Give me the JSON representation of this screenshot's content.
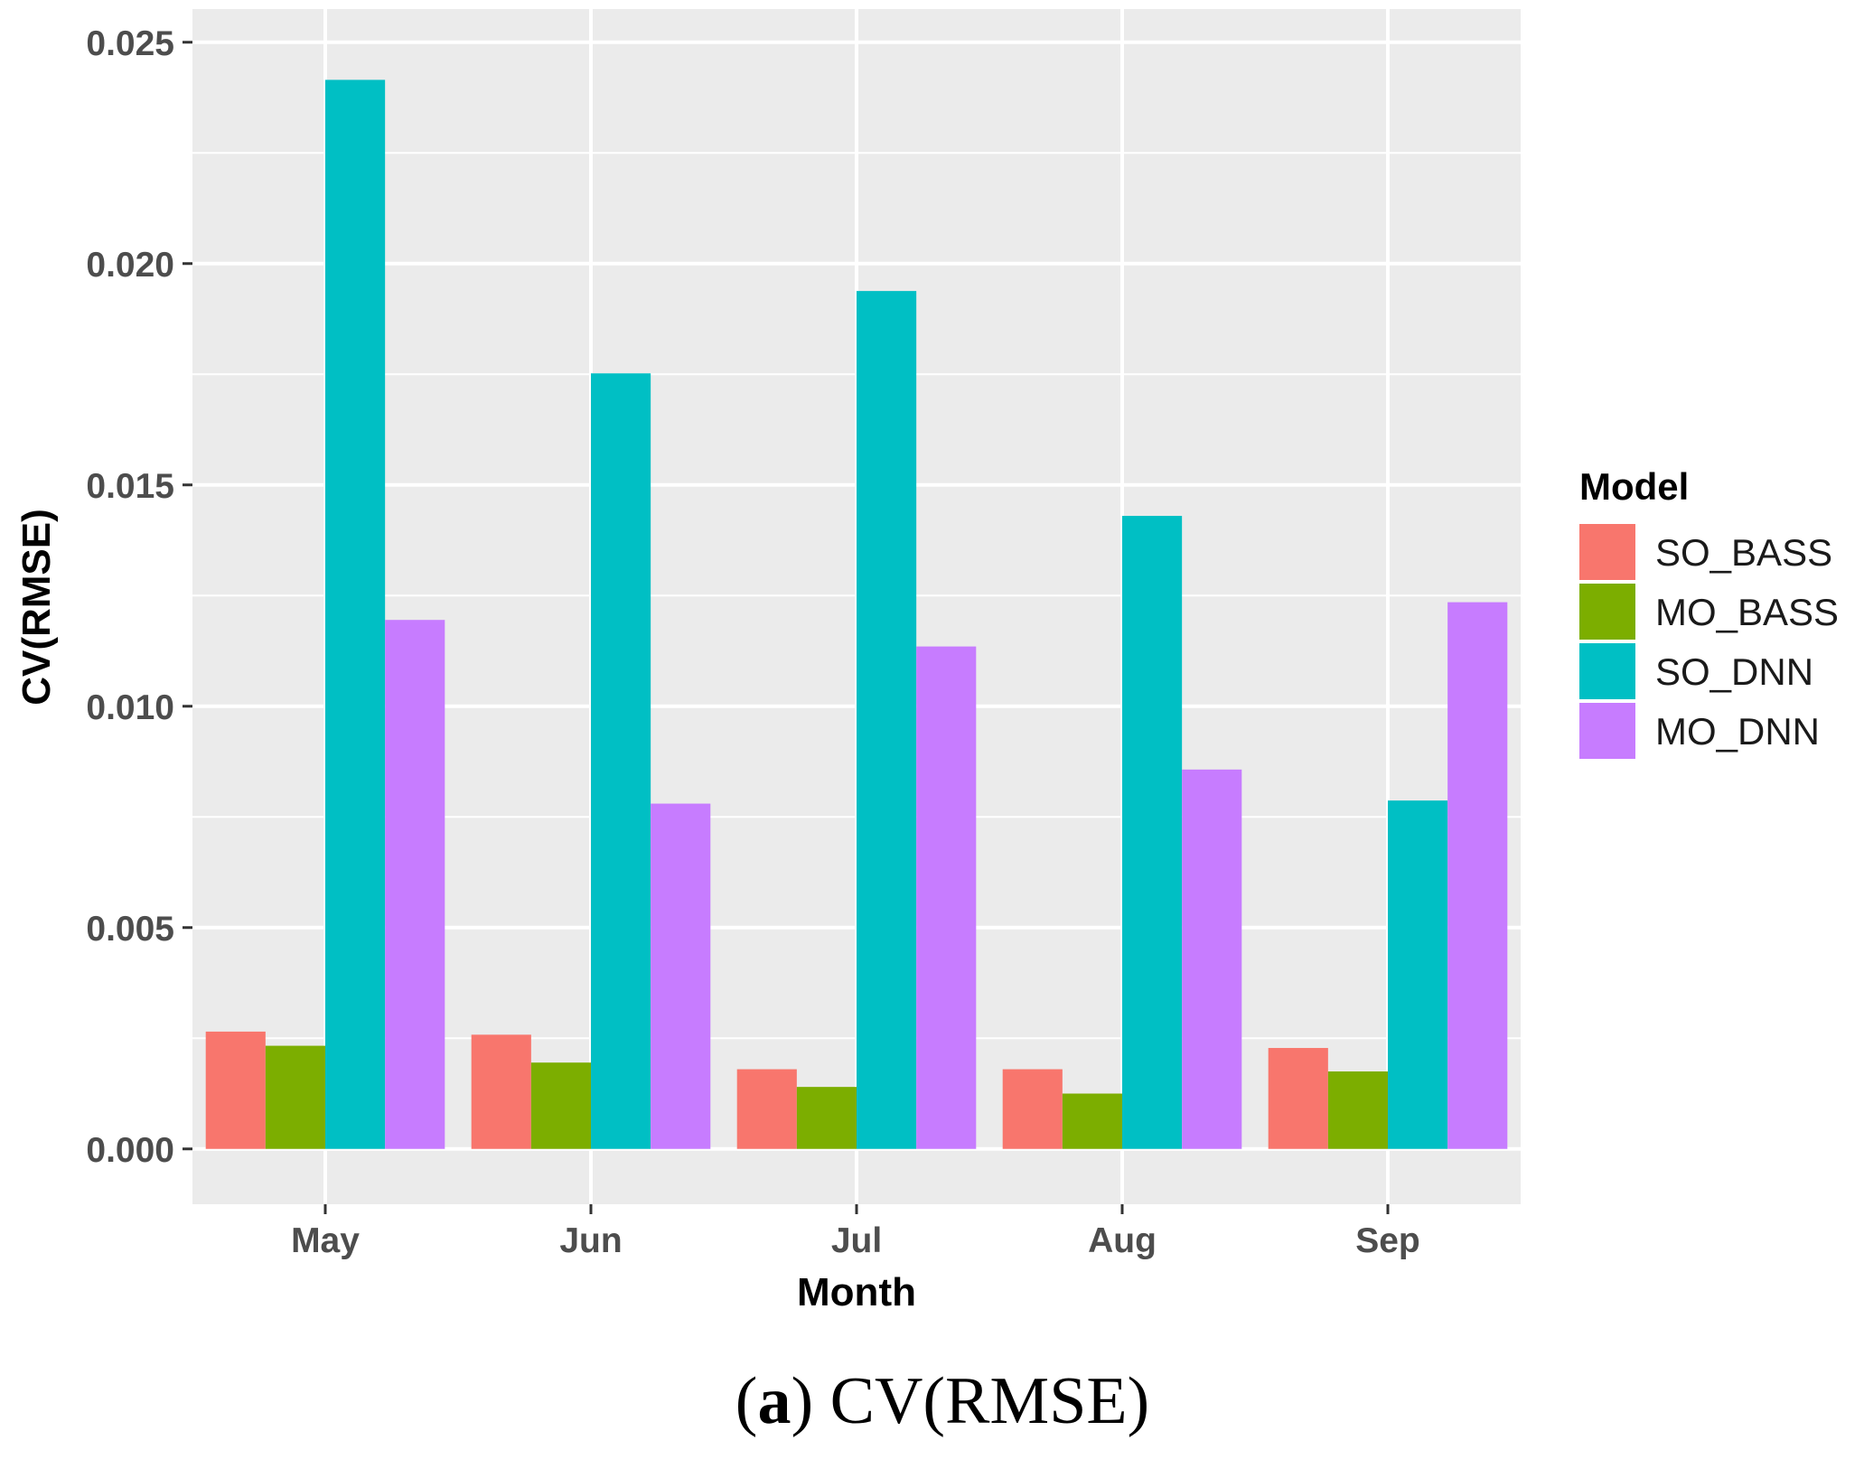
{
  "chart_data": {
    "type": "bar",
    "title": "",
    "xlabel": "Month",
    "ylabel": "CV(RMSE)",
    "ylim": [
      -0.00125,
      0.02575
    ],
    "yticks": [
      0.0,
      0.005,
      0.01,
      0.015,
      0.02,
      0.025
    ],
    "ytick_labels": [
      "0.000",
      "0.005",
      "0.010",
      "0.015",
      "0.020",
      "0.025"
    ],
    "categories": [
      "May",
      "Jun",
      "Jul",
      "Aug",
      "Sep"
    ],
    "series": [
      {
        "name": "SO_BASS",
        "color": "#F8766D",
        "values": [
          0.00265,
          0.00258,
          0.0018,
          0.0018,
          0.00228
        ]
      },
      {
        "name": "MO_BASS",
        "color": "#7CAE00",
        "values": [
          0.00233,
          0.00195,
          0.0014,
          0.00125,
          0.00175
        ]
      },
      {
        "name": "SO_DNN",
        "color": "#00BFC4",
        "values": [
          0.02415,
          0.01752,
          0.01938,
          0.0143,
          0.00787
        ]
      },
      {
        "name": "MO_DNN",
        "color": "#C77CFF",
        "values": [
          0.01195,
          0.0078,
          0.01135,
          0.00857,
          0.01235
        ]
      }
    ],
    "grid": true,
    "legend": {
      "title": "Model",
      "position": "right"
    }
  },
  "caption": {
    "label": "a",
    "text": "CV(RMSE)"
  }
}
